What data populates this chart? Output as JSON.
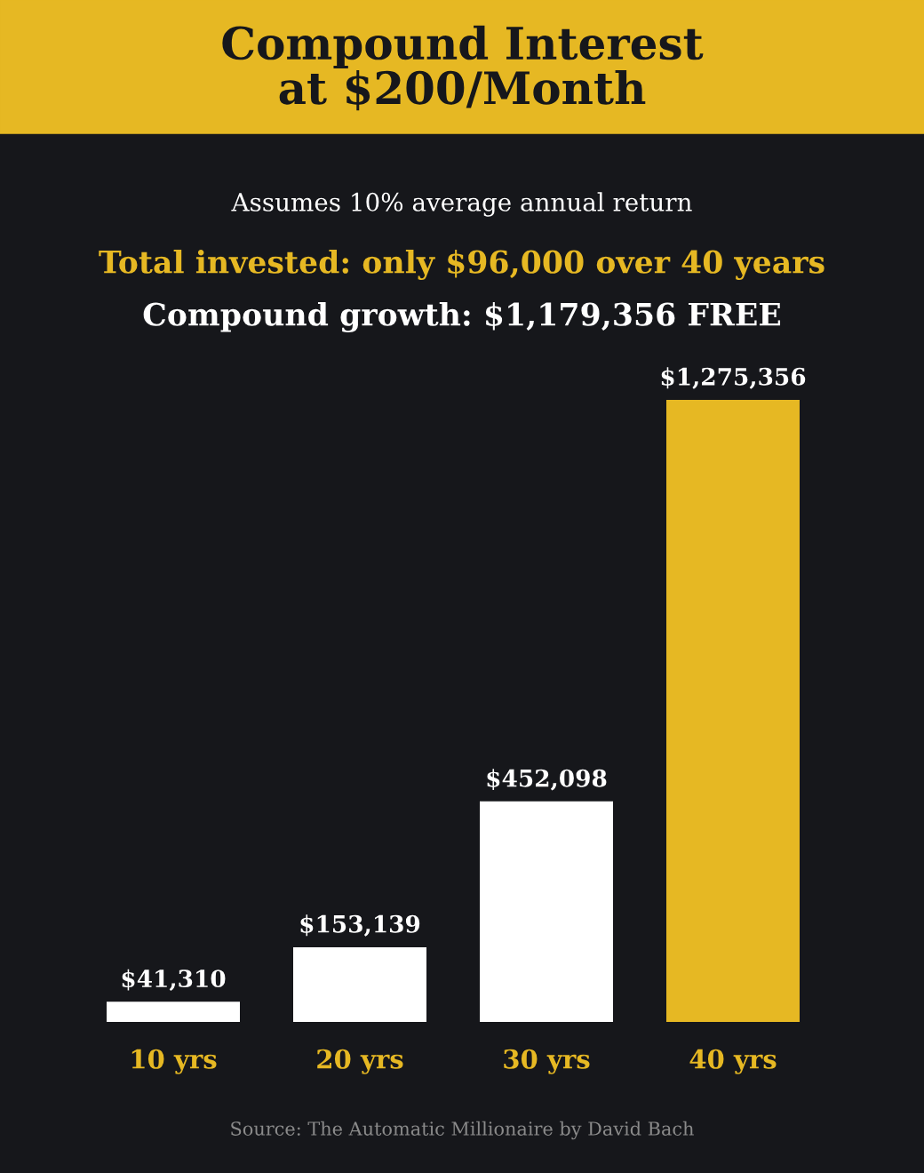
{
  "chart_data": {
    "type": "bar",
    "title": "Compound Interest\nat $200/Month",
    "subtitle": "Assumes 10% average annual return",
    "annotations": [
      "Total invested: only $96,000 over 40 years",
      "Compound growth: $1,179,356 FREE",
      "Source: The Automatic Millionaire by David Bach"
    ],
    "categories": [
      "10 yrs",
      "20 yrs",
      "30 yrs",
      "40 yrs"
    ],
    "values": [
      41310,
      153139,
      452098,
      1275356
    ],
    "colors": [
      "#ffffff",
      "#ffffff",
      "#ffffff",
      "#e6b823"
    ],
    "value_labels": [
      "$41,310",
      "$153,139",
      "$452,098",
      "$1,275,356"
    ],
    "grid": false,
    "legend": false
  }
}
